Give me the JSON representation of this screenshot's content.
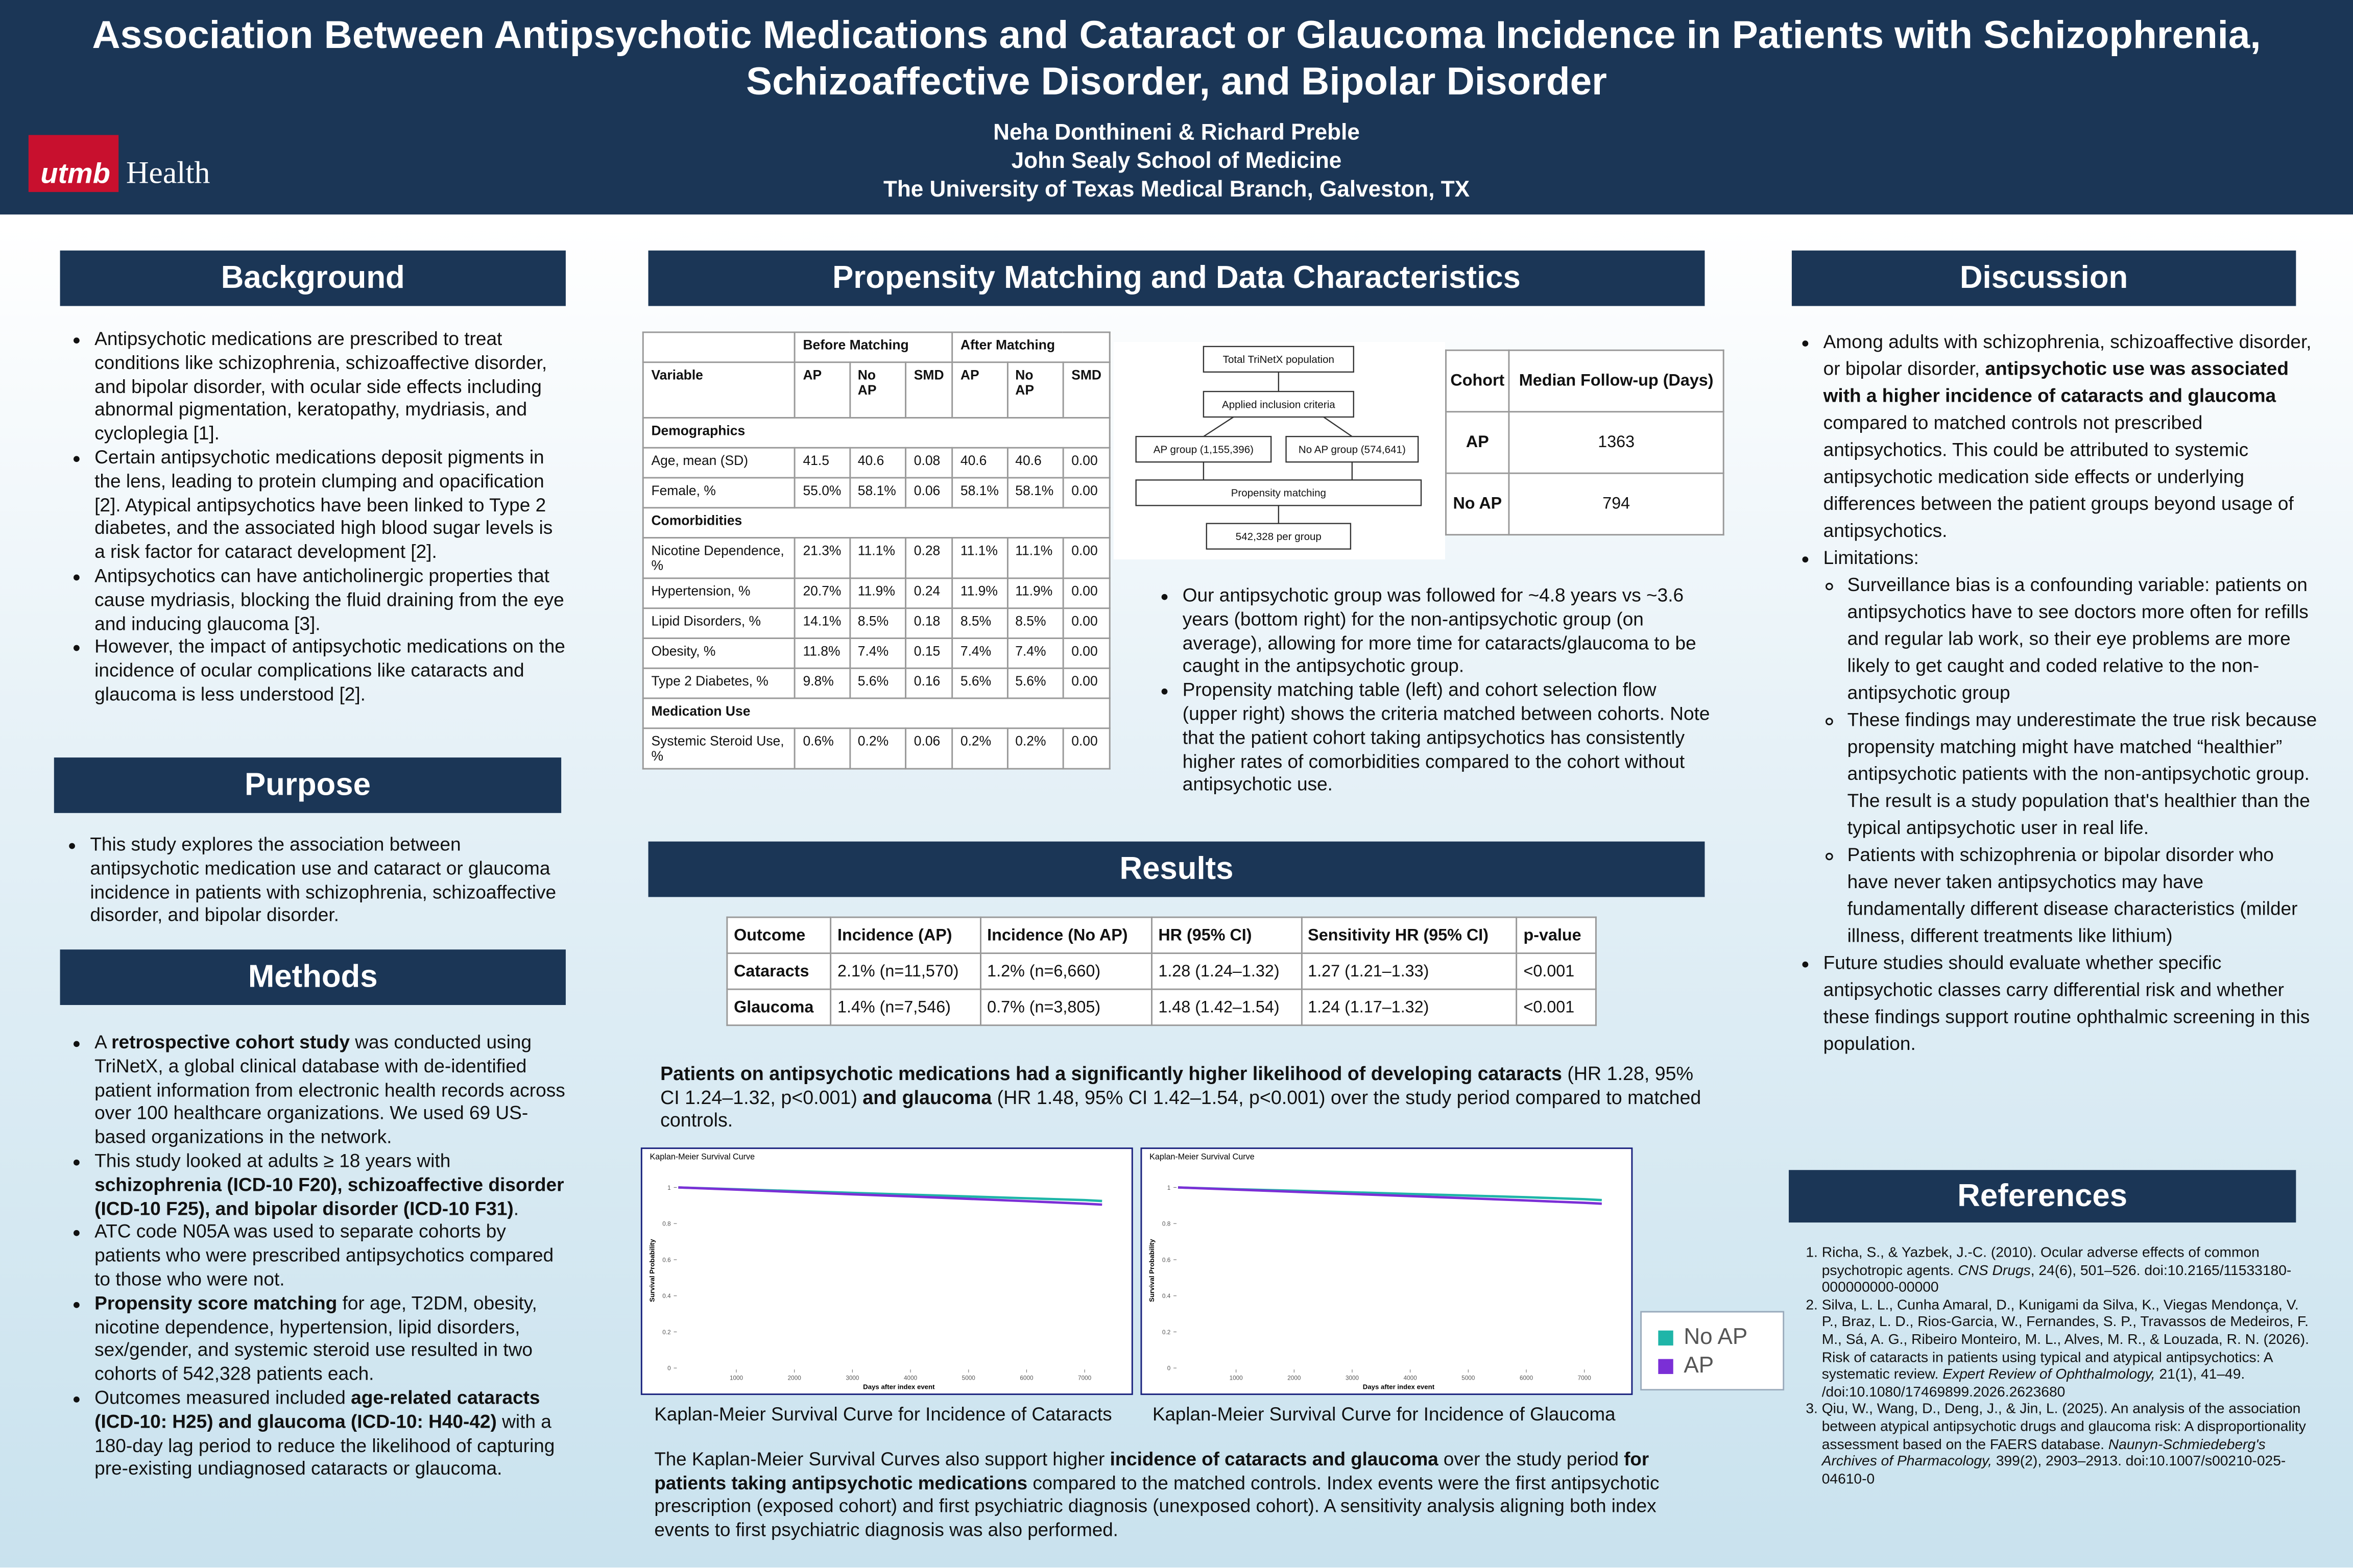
{
  "header": {
    "title": "Association Between Antipsychotic Medications and Cataract or Glaucoma Incidence in Patients with Schizophrenia, Schizoaffective Disorder, and Bipolar Disorder",
    "authors": "Neha Donthineni & Richard Preble",
    "school": "John Sealy School of Medicine",
    "institution": "The University of Texas Medical Branch, Galveston, TX",
    "logo": [
      "utmb",
      "Health"
    ]
  },
  "background": {
    "heading": "Background",
    "items": [
      [
        "Antipsychotic medications are prescribed to treat conditions like schizophrenia, schizoaffective disorder, and bipolar disorder, with ocular side effects including abnormal pigmentation, keratopathy, mydriasis, and cycloplegia [1]."
      ],
      [
        "Certain antipsychotic medications deposit pigments in the lens, leading to protein clumping and opacification [2]. Atypical antipsychotics have been linked to Type 2 diabetes, and the associated high blood sugar levels is a risk factor for cataract development [2]."
      ],
      [
        "Antipsychotics can have anticholinergic properties that cause mydriasis, blocking the fluid draining from the eye and inducing glaucoma [3]."
      ],
      [
        "However, the impact of antipsychotic medications on the incidence of ocular complications like cataracts and glaucoma is less understood [2]."
      ]
    ]
  },
  "purpose": {
    "heading": "Purpose",
    "items": [
      [
        "This study explores the association between antipsychotic medication use and cataract or glaucoma incidence in patients with schizophrenia, schizoaffective disorder, and bipolar disorder."
      ]
    ]
  },
  "methods": {
    "heading": "Methods",
    "items": [
      [
        "A ",
        {
          "b": "retrospective cohort study"
        },
        " was conducted using TriNetX, a global clinical database with de-identified patient information from electronic health records across over 100 healthcare organizations. We used 69 US-based organizations in the network."
      ],
      [
        "This study looked at adults ≥ 18 years with ",
        {
          "b": "schizophrenia (ICD-10 F20), schizoaffective disorder (ICD-10 F25), and bipolar disorder (ICD-10 F31)"
        },
        "."
      ],
      [
        "ATC code N05A was used to separate cohorts by patients who were prescribed antipsychotics compared to those who were not."
      ],
      [
        {
          "b": "Propensity score matching"
        },
        " for age, T2DM, obesity, nicotine dependence, hypertension, lipid disorders, sex/gender, and systemic steroid use resulted in two cohorts of 542,328 patients each."
      ],
      [
        "Outcomes measured included ",
        {
          "b": "age-related cataracts (ICD-10: H25) and glaucoma (ICD-10: H40-42)"
        },
        " with a 180-day lag period to reduce the likelihood of capturing pre-existing undiagnosed cataracts or glaucoma."
      ]
    ]
  },
  "matching": {
    "heading": "Propensity Matching and Data Characteristics",
    "table": {
      "groups": [
        "Before Matching",
        "After Matching"
      ],
      "header": [
        "Variable",
        "AP",
        "No AP",
        "SMD",
        "AP",
        "No AP",
        "SMD"
      ],
      "rows": [
        [
          "Demographics"
        ],
        [
          "Age, mean (SD)",
          "41.5",
          "40.6",
          "0.08",
          "40.6",
          "40.6",
          "0.00"
        ],
        [
          "Female, %",
          "55.0%",
          "58.1%",
          "0.06",
          "58.1%",
          "58.1%",
          "0.00"
        ],
        [
          "Comorbidities"
        ],
        [
          "Nicotine Dependence, %",
          "21.3%",
          "11.1%",
          "0.28",
          "11.1%",
          "11.1%",
          "0.00"
        ],
        [
          "Hypertension, %",
          "20.7%",
          "11.9%",
          "0.24",
          "11.9%",
          "11.9%",
          "0.00"
        ],
        [
          "Lipid Disorders, %",
          "14.1%",
          "8.5%",
          "0.18",
          "8.5%",
          "8.5%",
          "0.00"
        ],
        [
          "Obesity, %",
          "11.8%",
          "7.4%",
          "0.15",
          "7.4%",
          "7.4%",
          "0.00"
        ],
        [
          "Type 2 Diabetes, %",
          "9.8%",
          "5.6%",
          "0.16",
          "5.6%",
          "5.6%",
          "0.00"
        ],
        [
          "Medication Use"
        ],
        [
          "Systemic Steroid Use, %",
          "0.6%",
          "0.2%",
          "0.06",
          "0.2%",
          "0.2%",
          "0.00"
        ]
      ]
    },
    "flow": {
      "nodes": [
        "Total TriNetX population",
        "Applied inclusion criteria",
        "AP group (1,155,396)",
        "No AP group (574,641)",
        "Propensity matching",
        "542,328 per group"
      ]
    },
    "followup": {
      "header": [
        "Cohort",
        "Median Follow-up (Days)"
      ],
      "rows": [
        [
          "AP",
          "1363"
        ],
        [
          "No AP",
          "794"
        ]
      ]
    },
    "items": [
      [
        "Our antipsychotic group was followed for ~4.8 years vs ~3.6 years (bottom right) for the non-antipsychotic group (on average), allowing for more time for cataracts/glaucoma to be caught in the antipsychotic group."
      ],
      [
        "Propensity matching table (left) and cohort selection flow (upper right) shows the criteria matched between cohorts. Note that the patient cohort taking antipsychotics has consistently higher rates of comorbidities compared to the cohort without antipsychotic use."
      ]
    ]
  },
  "results": {
    "heading": "Results",
    "table": {
      "header": [
        "Outcome",
        "Incidence (AP)",
        "Incidence (No AP)",
        "HR (95% CI)",
        "Sensitivity HR (95% CI)",
        "p-value"
      ],
      "rows": [
        [
          "Cataracts",
          "2.1% (n=11,570)",
          "1.2% (n=6,660)",
          "1.28 (1.24–1.32)",
          "1.27 (1.21–1.33)",
          "<0.001"
        ],
        [
          "Glaucoma",
          "1.4% (n=7,546)",
          "0.7% (n=3,805)",
          "1.48 (1.42–1.54)",
          "1.24 (1.17–1.32)",
          "<0.001"
        ]
      ]
    },
    "summary": [
      {
        "b": "Patients on antipsychotic medications had a significantly higher likelihood of developing cataracts"
      },
      " (HR 1.28, 95% CI 1.24–1.32, p<0.001) ",
      {
        "b": "and glaucoma"
      },
      " (HR 1.48, 95% CI 1.42–1.54, p<0.001) over the study period compared to matched controls."
    ],
    "captions": [
      "Kaplan-Meier Survival Curve for Incidence of Cataracts",
      "Kaplan-Meier Survival Curve for Incidence of Glaucoma"
    ],
    "paragraph": [
      "The Kaplan-Meier Survival Curves also support higher ",
      {
        "b": "incidence of cataracts and glaucoma"
      },
      " over the study period ",
      {
        "b": "for patients taking antipsychotic medications"
      },
      " compared to the matched controls. Index events were the first antipsychotic prescription (exposed cohort) and first psychiatric diagnosis (unexposed cohort). A sensitivity analysis aligning both index events to first psychiatric diagnosis was also performed."
    ]
  },
  "chart_data": [
    {
      "type": "line",
      "title": "Kaplan-Meier Survival Curve",
      "x_label": "Days after index event",
      "y_label": "Survival Probability",
      "x": [
        0,
        1000,
        2000,
        3000,
        4000,
        5000,
        6000,
        7000,
        7300
      ],
      "series": [
        {
          "name": "No AP",
          "color": "#1fb5a8",
          "values": [
            1,
            0.99,
            0.98,
            0.97,
            0.96,
            0.95,
            0.94,
            0.93,
            0.925
          ]
        },
        {
          "name": "AP",
          "color": "#7b2fd6",
          "values": [
            1,
            0.988,
            0.975,
            0.962,
            0.95,
            0.937,
            0.924,
            0.91,
            0.905
          ]
        }
      ],
      "xlim": [
        0,
        7600
      ],
      "ylim": [
        0,
        1.08
      ],
      "xticks": [
        1000,
        2000,
        3000,
        4000,
        5000,
        6000,
        7000
      ],
      "yticks": [
        0,
        0.2,
        0.4,
        0.6,
        0.8,
        1
      ]
    },
    {
      "type": "line",
      "title": "Kaplan-Meier Survival Curve",
      "x_label": "Days after index event",
      "y_label": "Survival Probability",
      "x": [
        0,
        1000,
        2000,
        3000,
        4000,
        5000,
        6000,
        7000,
        7300
      ],
      "series": [
        {
          "name": "No AP",
          "color": "#1fb5a8",
          "values": [
            1,
            0.99,
            0.982,
            0.973,
            0.964,
            0.955,
            0.946,
            0.935,
            0.93
          ]
        },
        {
          "name": "AP",
          "color": "#7b2fd6",
          "values": [
            1,
            0.988,
            0.976,
            0.964,
            0.952,
            0.94,
            0.928,
            0.915,
            0.91
          ]
        }
      ],
      "xlim": [
        0,
        7600
      ],
      "ylim": [
        0,
        1.08
      ],
      "xticks": [
        1000,
        2000,
        3000,
        4000,
        5000,
        6000,
        7000
      ],
      "yticks": [
        0,
        0.2,
        0.4,
        0.6,
        0.8,
        1
      ]
    }
  ],
  "discussion": {
    "heading": "Discussion",
    "items": [
      {
        "runs": [
          "Among adults with schizophrenia, schizoaffective disorder, or bipolar disorder, ",
          {
            "b": "antipsychotic use was associated with a higher incidence of cataracts and glaucoma"
          },
          " compared to matched controls not prescribed antipsychotics. This could be attributed to systemic antipsychotic medication side effects or underlying differences between the patient groups beyond usage of antipsychotics."
        ]
      },
      {
        "runs": [
          "Limitations:"
        ],
        "sub": [
          [
            "Surveillance bias is a confounding variable: patients on antipsychotics have to see doctors more often for refills and regular lab work, so their eye problems are more likely to get caught and coded relative to the non-antipsychotic group"
          ],
          [
            "These findings may underestimate the true risk because propensity matching might have matched “healthier” antipsychotic patients with the non-antipsychotic group. The result is a study population that's healthier than the typical antipsychotic user in real life."
          ],
          [
            "Patients with schizophrenia or bipolar disorder who have never taken antipsychotics may have fundamentally different disease characteristics (milder illness, different treatments like lithium)"
          ]
        ]
      },
      {
        "runs": [
          "Future studies should evaluate whether specific antipsychotic classes carry differential risk  and whether these findings support routine ophthalmic screening in this population."
        ]
      }
    ]
  },
  "references": {
    "heading": "References",
    "items": [
      [
        "Richa, S., & Yazbek, J.-C. (2010). Ocular adverse effects of common psychotropic agents. ",
        {
          "i": "CNS Drugs"
        },
        ", 24(6), 501–526. doi:10.2165/11533180-000000000-00000"
      ],
      [
        "Silva, L. L., Cunha Amaral, D., Kunigami da Silva, K., Viegas Mendonça, V. P., Braz, L. D., Rios-Garcia, W., Fernandes, S. P., Travassos de Medeiros, F. M., Sá, A. G., Ribeiro Monteiro, M. L., Alves, M. R., & Louzada, R. N. (2026). Risk of cataracts in patients using typical and atypical antipsychotics: A systematic review. ",
        {
          "i": "Expert Review of Ophthalmology,"
        },
        " 21(1), 41–49. /doi:10.1080/17469899.2026.2623680"
      ],
      [
        "Qiu, W., Wang, D., Deng, J., & Jin, L. (2025). An analysis of the association between atypical antipsychotic drugs and glaucoma risk: A disproportionality assessment based on the FAERS database. ",
        {
          "i": "Naunyn-Schmiedeberg's Archives of Pharmacology,"
        },
        " 399(2), 2903–2913. doi:10.1007/s00210-025-04610-0"
      ]
    ]
  }
}
